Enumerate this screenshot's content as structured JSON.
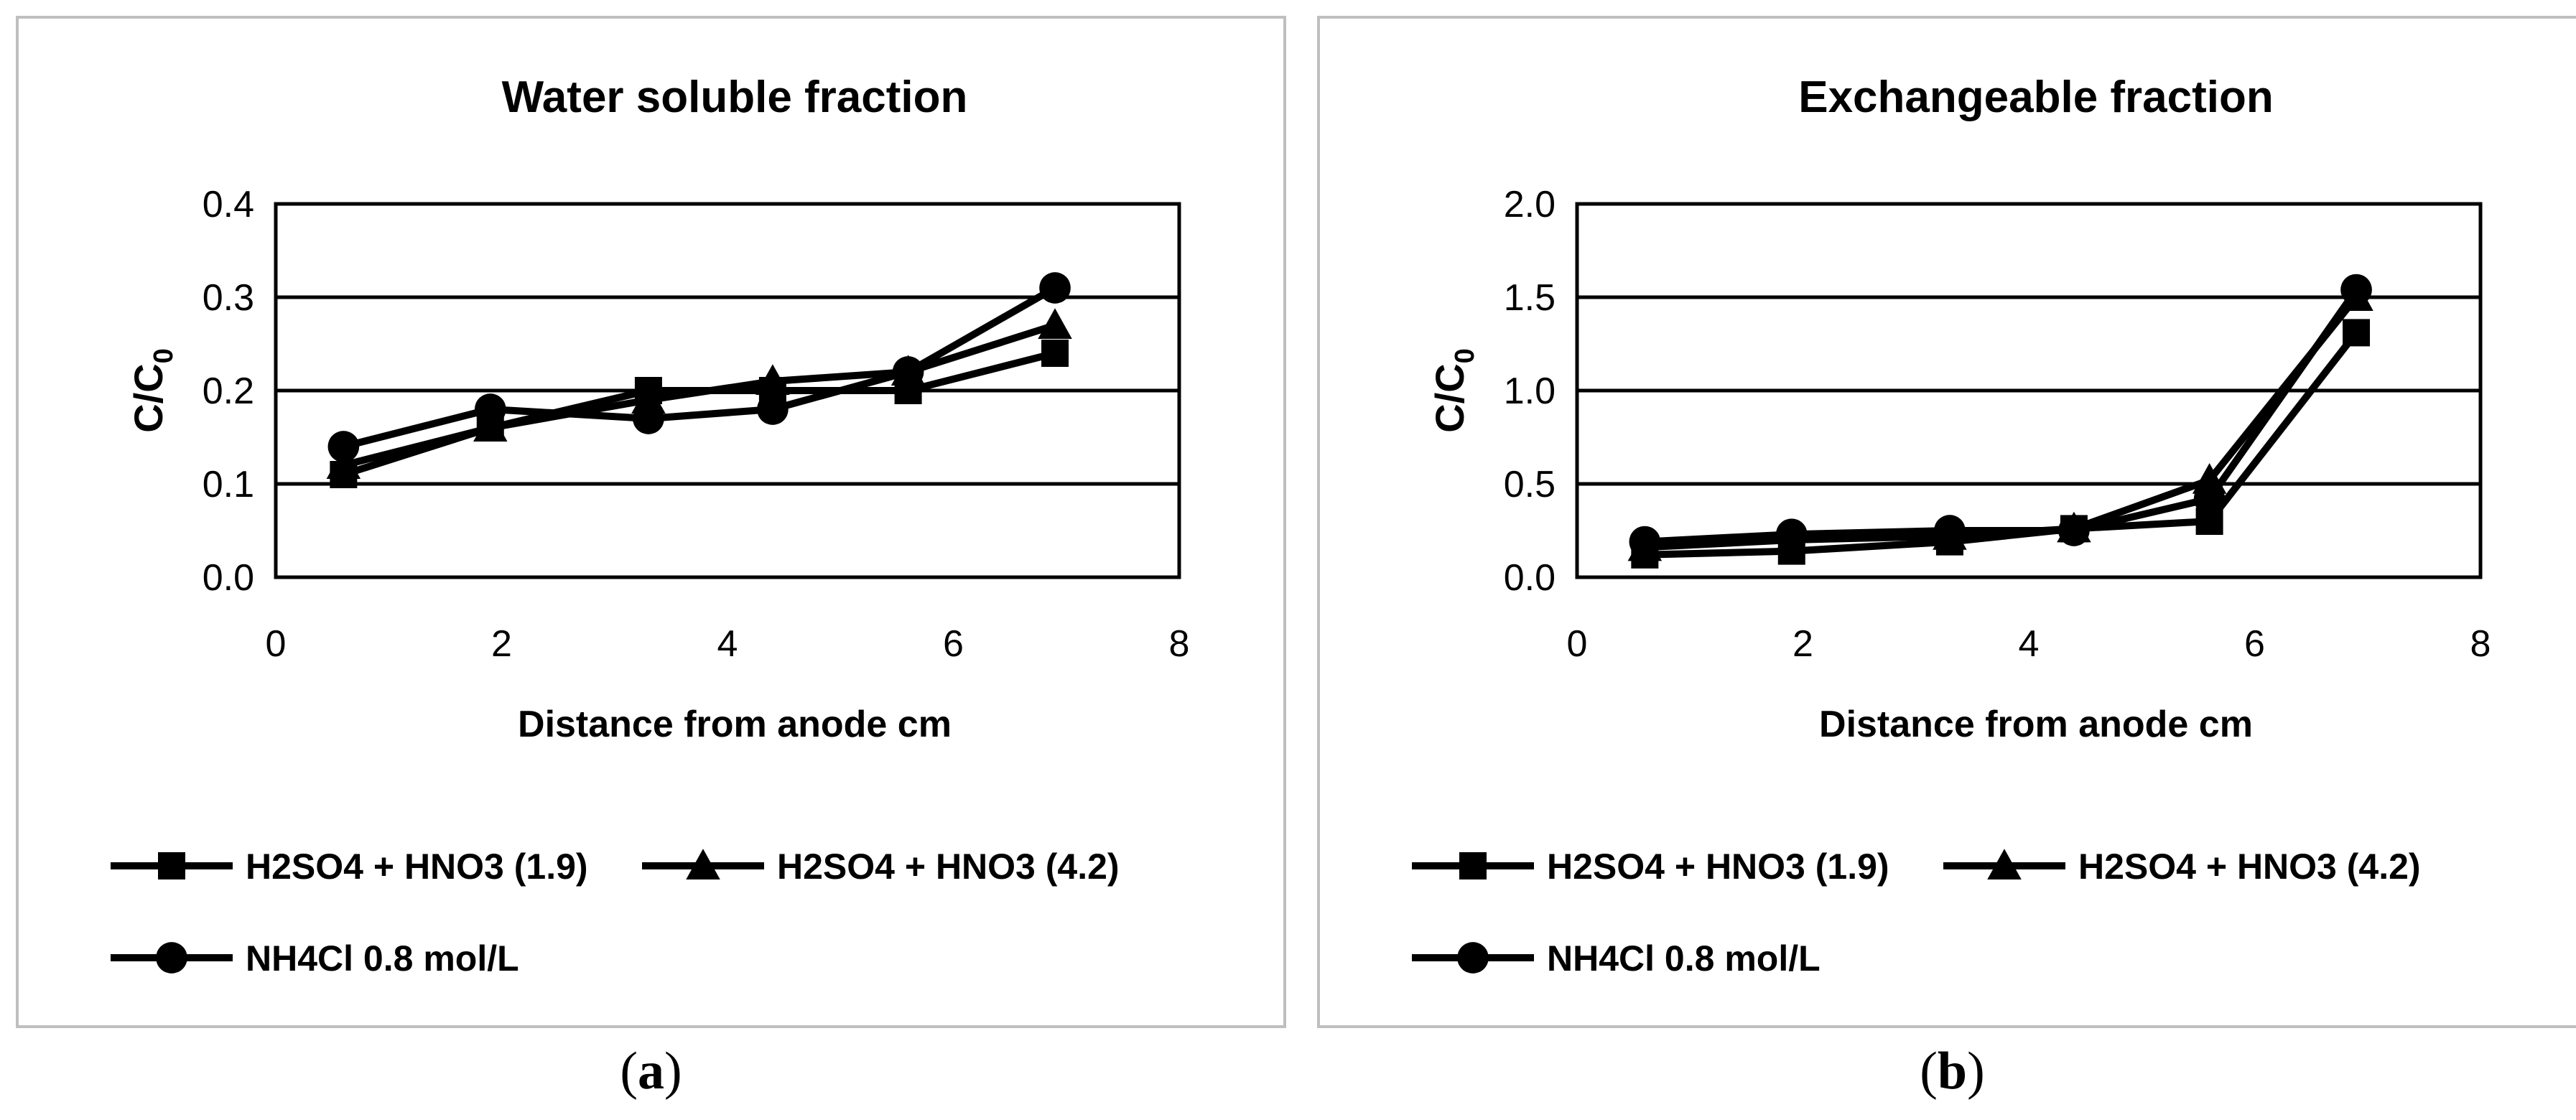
{
  "chart_data": [
    {
      "type": "line",
      "panel_label": "a",
      "title": "Water soluble fraction",
      "xlabel": "Distance from anode cm",
      "ylabel": "C/C",
      "ylabel_sub": "0",
      "xlim": [
        0,
        8
      ],
      "ylim": [
        0,
        0.4
      ],
      "xticks": [
        "0",
        "2",
        "4",
        "6",
        "8"
      ],
      "yticks": [
        "0.0",
        "0.1",
        "0.2",
        "0.3",
        "0.4"
      ],
      "grid": "horizontal",
      "legend_position": "bottom",
      "x": [
        0.6,
        1.9,
        3.3,
        4.4,
        5.6,
        6.9
      ],
      "series": [
        {
          "name": "H2SO4 + HNO3 (1.9)",
          "marker": "square",
          "values": [
            0.11,
            0.16,
            0.2,
            0.2,
            0.2,
            0.24
          ]
        },
        {
          "name": "H2SO4 + HNO3 (4.2)",
          "marker": "triangle",
          "values": [
            0.12,
            0.16,
            0.19,
            0.21,
            0.22,
            0.27
          ]
        },
        {
          "name": "NH4Cl 0.8 mol/L",
          "marker": "circle",
          "values": [
            0.14,
            0.18,
            0.17,
            0.18,
            0.22,
            0.31
          ]
        }
      ]
    },
    {
      "type": "line",
      "panel_label": "b",
      "title": "Exchangeable fraction",
      "xlabel": "Distance from anode cm",
      "ylabel": "C/C",
      "ylabel_sub": "0",
      "xlim": [
        0,
        8
      ],
      "ylim": [
        0,
        2.0
      ],
      "xticks": [
        "0",
        "2",
        "4",
        "6",
        "8"
      ],
      "yticks": [
        "0.0",
        "0.5",
        "1.0",
        "1.5",
        "2.0"
      ],
      "grid": "horizontal",
      "legend_position": "bottom",
      "x": [
        0.6,
        1.9,
        3.3,
        4.4,
        5.6,
        6.9
      ],
      "series": [
        {
          "name": "H2SO4 + HNO3 (1.9)",
          "marker": "square",
          "values": [
            0.12,
            0.14,
            0.19,
            0.26,
            0.3,
            1.31
          ]
        },
        {
          "name": "H2SO4 + HNO3 (4.2)",
          "marker": "triangle",
          "values": [
            0.16,
            0.2,
            0.22,
            0.26,
            0.52,
            1.5
          ]
        },
        {
          "name": "NH4Cl 0.8 mol/L",
          "marker": "circle",
          "values": [
            0.19,
            0.23,
            0.25,
            0.25,
            0.42,
            1.54
          ]
        }
      ]
    }
  ],
  "captions": {
    "a": "a",
    "b": "b"
  },
  "colors": {
    "line": "#000000",
    "grid": "#000000",
    "frame": "#bfbfbf"
  }
}
